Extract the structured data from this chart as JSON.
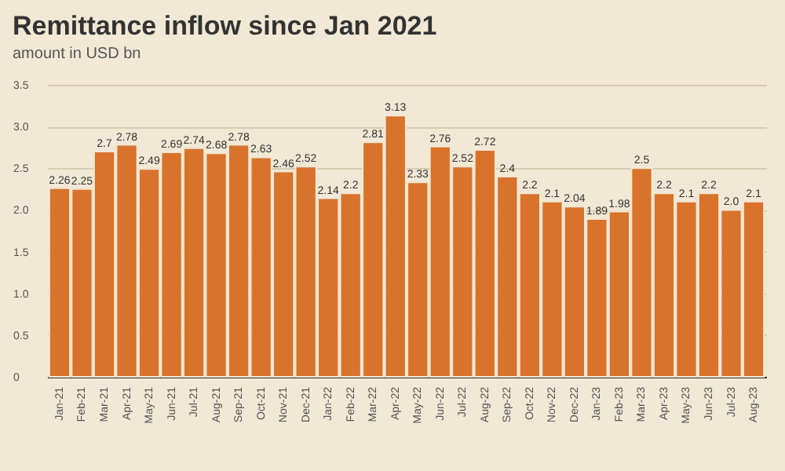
{
  "chart_data": {
    "type": "bar",
    "title": "Remittance inflow since Jan 2021",
    "subtitle": "amount in USD bn",
    "categories": [
      "Jan-21",
      "Feb-21",
      "Mar-21",
      "Apr-21",
      "May-21",
      "Jun-21",
      "Jul-21",
      "Aug-21",
      "Sep-21",
      "Oct-21",
      "Nov-21",
      "Dec-21",
      "Jan-22",
      "Feb-22",
      "Mar-22",
      "Apr-22",
      "May-22",
      "Jun-22",
      "Jul-22",
      "Aug-22",
      "Sep-22",
      "Oct-22",
      "Nov-22",
      "Dec-22",
      "Jan-23",
      "Feb-23",
      "Mar-23",
      "Apr-23",
      "May-23",
      "Jun-23",
      "Jul-23",
      "Aug-23"
    ],
    "values": [
      2.26,
      2.25,
      2.7,
      2.78,
      2.49,
      2.69,
      2.74,
      2.68,
      2.78,
      2.63,
      2.46,
      2.52,
      2.14,
      2.2,
      2.81,
      3.13,
      2.33,
      2.76,
      2.52,
      2.72,
      2.4,
      2.2,
      2.1,
      2.04,
      1.89,
      1.98,
      2.5,
      2.2,
      2.1,
      2.2,
      2.0,
      2.1
    ],
    "value_labels": [
      "2.26",
      "2.25",
      "2.7",
      "2.78",
      "2.49",
      "2.69",
      "2.74",
      "2.68",
      "2.78",
      "2.63",
      "2.46",
      "2.52",
      "2.14",
      "2.2",
      "2.81",
      "3.13",
      "2.33",
      "2.76",
      "2.52",
      "2.72",
      "2.4",
      "2.2",
      "2.1",
      "2.04",
      "1.89",
      "1.98",
      "2.5",
      "2.2",
      "2.1",
      "2.2",
      "2.0",
      "2.1"
    ],
    "color": "#d9722b",
    "ylim": [
      0,
      3.5
    ],
    "yticks": [
      0,
      {
        "value": 0.5,
        "label": "0.5"
      },
      {
        "value": 1,
        "label": "1.0"
      },
      {
        "value": 1.5,
        "label": "1.5"
      },
      {
        "value": 2,
        "label": "2.0"
      },
      {
        "value": 2.5,
        "label": "2.5"
      },
      {
        "value": 3,
        "label": "3.0"
      },
      {
        "value": 3.5,
        "label": "3.5"
      }
    ],
    "grid": "y"
  }
}
